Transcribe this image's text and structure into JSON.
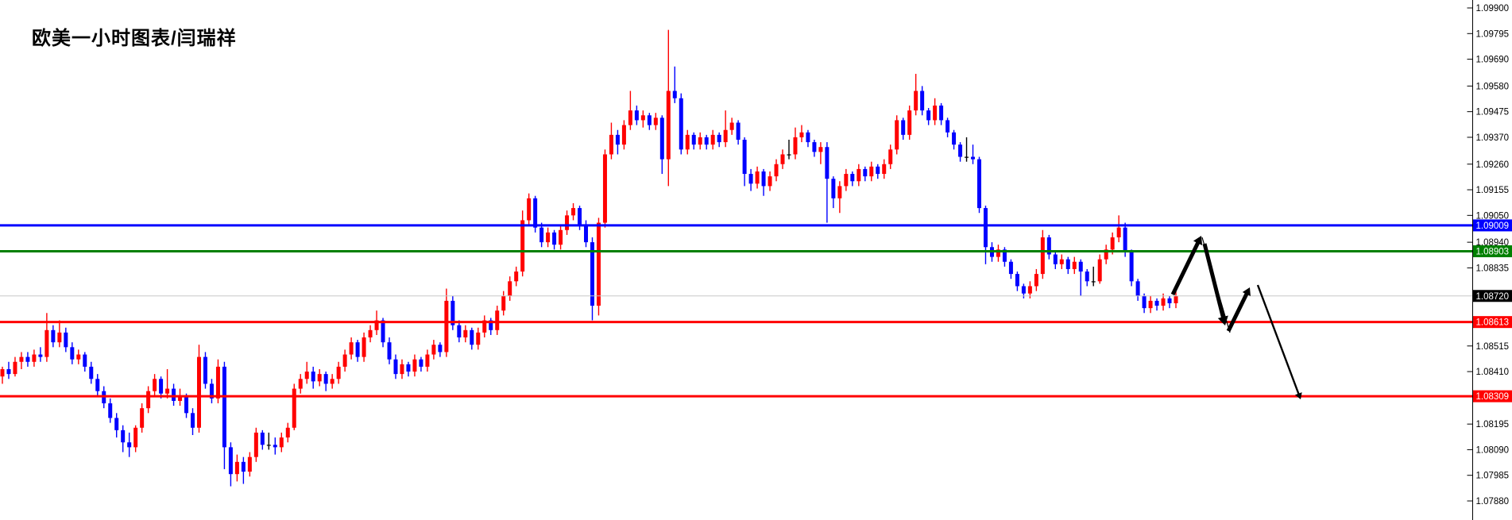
{
  "title": "欧美一小时图表/闫瑞祥",
  "colors": {
    "background": "#FFFFFF",
    "bull_candle": "#FF0000",
    "bear_candle": "#0000FF",
    "doji_candle": "#000000",
    "level_blue": "#0000FF",
    "level_green": "#008000",
    "level_red": "#FF0000",
    "current_price_line": "#C8C8C8",
    "current_price_badge": "#000000",
    "axis_line": "#000000",
    "axis_text": "#000000",
    "badge_text": "#FFFFFF",
    "arrow": "#000000"
  },
  "axis": {
    "side": "right",
    "tick_labels": [
      "1.09900",
      "1.09795",
      "1.09690",
      "1.09580",
      "1.09475",
      "1.09370",
      "1.09260",
      "1.09155",
      "1.09050",
      "1.08940",
      "1.08835",
      "1.08515",
      "1.08410",
      "1.08195",
      "1.08090",
      "1.07985",
      "1.07880"
    ],
    "tick_values": [
      1.099,
      1.09795,
      1.0969,
      1.0958,
      1.09475,
      1.0937,
      1.0926,
      1.09155,
      1.0905,
      1.0894,
      1.08835,
      1.08515,
      1.0841,
      1.08195,
      1.0809,
      1.07985,
      1.0788
    ]
  },
  "levels": [
    {
      "name": "resistance-blue",
      "price": 1.09009,
      "label": "1.09009",
      "color": "#0000FF",
      "stroke": 3,
      "badge": "#0000FF"
    },
    {
      "name": "resistance-green",
      "price": 1.08903,
      "label": "1.08903",
      "color": "#008000",
      "stroke": 3,
      "badge": "#008000"
    },
    {
      "name": "current-price",
      "price": 1.0872,
      "label": "1.08720",
      "color": "#C8C8C8",
      "stroke": 1,
      "badge": "#000000"
    },
    {
      "name": "support-red-1",
      "price": 1.08613,
      "label": "1.08613",
      "color": "#FF0000",
      "stroke": 3,
      "badge": "#FF0000"
    },
    {
      "name": "support-red-2",
      "price": 1.08309,
      "label": "1.08309",
      "color": "#FF0000",
      "stroke": 3,
      "badge": "#FF0000"
    }
  ],
  "arrows": [
    {
      "name": "projection-up-arrow-1",
      "from": [
        1476,
        371
      ],
      "to": [
        1512,
        297
      ],
      "stroke": 5,
      "head": 12
    },
    {
      "name": "projection-guide-line",
      "from": [
        1513,
        299
      ],
      "to": [
        1548,
        419
      ],
      "stroke": 1.2,
      "head": 0
    },
    {
      "name": "projection-down-arrow-1",
      "from": [
        1516,
        307
      ],
      "to": [
        1542,
        410
      ],
      "stroke": 5,
      "head": 13
    },
    {
      "name": "projection-up-arrow-2",
      "from": [
        1546,
        417
      ],
      "to": [
        1573,
        362
      ],
      "stroke": 5,
      "head": 11
    },
    {
      "name": "projection-down-arrow-2",
      "from": [
        1583,
        359
      ],
      "to": [
        1637,
        503
      ],
      "stroke": 2.4,
      "head": 9
    }
  ],
  "chart_data": {
    "type": "candlestick",
    "title": "欧美一小时图表/闫瑞祥",
    "timeframe_note": "1小时",
    "ylim": [
      1.0788,
      1.099
    ],
    "grid": false,
    "legend": "none",
    "ohlc": [
      [
        1.0839,
        1.0843,
        1.0836,
        1.0842
      ],
      [
        1.0842,
        1.0845,
        1.0838,
        1.084
      ],
      [
        1.084,
        1.0847,
        1.0839,
        1.0845
      ],
      [
        1.0845,
        1.0849,
        1.0842,
        1.0847
      ],
      [
        1.0847,
        1.0849,
        1.0843,
        1.0845
      ],
      [
        1.0845,
        1.085,
        1.0843,
        1.0848
      ],
      [
        1.0848,
        1.0851,
        1.0845,
        1.0847
      ],
      [
        1.0847,
        1.0865,
        1.0845,
        1.0858
      ],
      [
        1.0858,
        1.086,
        1.0851,
        1.0853
      ],
      [
        1.0853,
        1.0862,
        1.0851,
        1.0857
      ],
      [
        1.0857,
        1.0859,
        1.0849,
        1.0851
      ],
      [
        1.0851,
        1.0853,
        1.0844,
        1.0846
      ],
      [
        1.0846,
        1.085,
        1.0844,
        1.0848
      ],
      [
        1.0848,
        1.0849,
        1.0841,
        1.0843
      ],
      [
        1.0843,
        1.0845,
        1.0836,
        1.0838
      ],
      [
        1.0838,
        1.084,
        1.0831,
        1.0833
      ],
      [
        1.0833,
        1.0835,
        1.0826,
        1.0828
      ],
      [
        1.0828,
        1.083,
        1.082,
        1.0822
      ],
      [
        1.0822,
        1.0824,
        1.0814,
        1.0817
      ],
      [
        1.0817,
        1.0819,
        1.0808,
        1.0812
      ],
      [
        1.0812,
        1.0816,
        1.0806,
        1.081
      ],
      [
        1.081,
        1.0819,
        1.0808,
        1.0818
      ],
      [
        1.0818,
        1.0828,
        1.0816,
        1.0826
      ],
      [
        1.0826,
        1.0835,
        1.0824,
        1.0833
      ],
      [
        1.0833,
        1.084,
        1.0831,
        1.0838
      ],
      [
        1.0838,
        1.0839,
        1.083,
        1.0832
      ],
      [
        1.0832,
        1.0842,
        1.083,
        1.0834
      ],
      [
        1.0834,
        1.0836,
        1.0827,
        1.0829
      ],
      [
        1.0829,
        1.0834,
        1.0827,
        1.0831
      ],
      [
        1.0831,
        1.0832,
        1.0822,
        1.0824
      ],
      [
        1.0824,
        1.0826,
        1.0815,
        1.0818
      ],
      [
        1.0818,
        1.0852,
        1.0816,
        1.0847
      ],
      [
        1.0847,
        1.0849,
        1.0834,
        1.0836
      ],
      [
        1.0836,
        1.0838,
        1.0828,
        1.083
      ],
      [
        1.083,
        1.0846,
        1.0828,
        1.0843
      ],
      [
        1.0843,
        1.0845,
        1.0801,
        1.081
      ],
      [
        1.081,
        1.0812,
        1.0794,
        1.0799
      ],
      [
        1.0799,
        1.0807,
        1.0796,
        1.0804
      ],
      [
        1.0804,
        1.0806,
        1.0795,
        1.08
      ],
      [
        1.08,
        1.0808,
        1.0798,
        1.0806
      ],
      [
        1.0806,
        1.0818,
        1.0804,
        1.0816
      ],
      [
        1.0816,
        1.0817,
        1.0809,
        1.0811
      ],
      [
        1.0811,
        1.0816,
        1.0809,
        1.0811
      ],
      [
        1.0811,
        1.0814,
        1.0807,
        1.081
      ],
      [
        1.081,
        1.0816,
        1.0808,
        1.0814
      ],
      [
        1.0814,
        1.082,
        1.0812,
        1.0818
      ],
      [
        1.0818,
        1.0836,
        1.0817,
        1.0834
      ],
      [
        1.0834,
        1.084,
        1.0832,
        1.0838
      ],
      [
        1.0838,
        1.0845,
        1.0836,
        1.0841
      ],
      [
        1.0841,
        1.0843,
        1.0834,
        1.0837
      ],
      [
        1.0837,
        1.0842,
        1.0835,
        1.084
      ],
      [
        1.084,
        1.0841,
        1.0833,
        1.0836
      ],
      [
        1.0836,
        1.084,
        1.0834,
        1.0838
      ],
      [
        1.0838,
        1.0845,
        1.0836,
        1.0843
      ],
      [
        1.0843,
        1.085,
        1.0841,
        1.0848
      ],
      [
        1.0848,
        1.0855,
        1.0846,
        1.0853
      ],
      [
        1.0853,
        1.0854,
        1.0845,
        1.0847
      ],
      [
        1.0847,
        1.0857,
        1.0845,
        1.0855
      ],
      [
        1.0855,
        1.086,
        1.0853,
        1.0858
      ],
      [
        1.0858,
        1.0866,
        1.0856,
        1.0862
      ],
      [
        1.0862,
        1.0863,
        1.0851,
        1.0853
      ],
      [
        1.0853,
        1.0855,
        1.0844,
        1.0846
      ],
      [
        1.0846,
        1.0848,
        1.0838,
        1.084
      ],
      [
        1.084,
        1.0846,
        1.0838,
        1.0844
      ],
      [
        1.0844,
        1.0845,
        1.0839,
        1.0841
      ],
      [
        1.0841,
        1.0848,
        1.0839,
        1.0846
      ],
      [
        1.0846,
        1.0847,
        1.0841,
        1.0843
      ],
      [
        1.0843,
        1.085,
        1.0841,
        1.0848
      ],
      [
        1.0848,
        1.0854,
        1.0846,
        1.0852
      ],
      [
        1.0852,
        1.0853,
        1.0847,
        1.0849
      ],
      [
        1.0849,
        1.0875,
        1.0847,
        1.087
      ],
      [
        1.087,
        1.0872,
        1.0858,
        1.086
      ],
      [
        1.086,
        1.0862,
        1.0853,
        1.0855
      ],
      [
        1.0855,
        1.086,
        1.0853,
        1.0858
      ],
      [
        1.0858,
        1.0859,
        1.085,
        1.0852
      ],
      [
        1.0852,
        1.0859,
        1.085,
        1.0857
      ],
      [
        1.0857,
        1.0864,
        1.0855,
        1.0862
      ],
      [
        1.0862,
        1.0863,
        1.0856,
        1.0858
      ],
      [
        1.0858,
        1.0868,
        1.0856,
        1.0866
      ],
      [
        1.0866,
        1.0874,
        1.0864,
        1.0872
      ],
      [
        1.0872,
        1.088,
        1.087,
        1.0878
      ],
      [
        1.0878,
        1.0884,
        1.0876,
        1.0882
      ],
      [
        1.0882,
        1.0907,
        1.088,
        1.0903
      ],
      [
        1.0903,
        1.0914,
        1.0901,
        1.0912
      ],
      [
        1.0912,
        1.0913,
        1.0898,
        1.09
      ],
      [
        1.09,
        1.0902,
        1.0892,
        1.0894
      ],
      [
        1.0894,
        1.09,
        1.0892,
        1.0898
      ],
      [
        1.0898,
        1.0899,
        1.0891,
        1.0893
      ],
      [
        1.0893,
        1.0901,
        1.0891,
        1.0899
      ],
      [
        1.0899,
        1.0907,
        1.0897,
        1.0905
      ],
      [
        1.0905,
        1.091,
        1.0903,
        1.0908
      ],
      [
        1.0908,
        1.0909,
        1.0899,
        1.0901
      ],
      [
        1.0901,
        1.0903,
        1.0892,
        1.0894
      ],
      [
        1.0894,
        1.0896,
        1.0862,
        1.0868
      ],
      [
        1.0868,
        1.0904,
        1.0864,
        1.0902
      ],
      [
        1.0902,
        1.0932,
        1.09,
        1.093
      ],
      [
        1.093,
        1.0943,
        1.0928,
        1.0938
      ],
      [
        1.0938,
        1.094,
        1.093,
        1.0934
      ],
      [
        1.0934,
        1.0944,
        1.0932,
        1.0942
      ],
      [
        1.0942,
        1.0956,
        1.094,
        1.0948
      ],
      [
        1.0948,
        1.095,
        1.0942,
        1.0944
      ],
      [
        1.0944,
        1.0948,
        1.0941,
        1.0946
      ],
      [
        1.0946,
        1.0947,
        1.094,
        1.0942
      ],
      [
        1.0942,
        1.0947,
        1.094,
        1.0945
      ],
      [
        1.0945,
        1.0946,
        1.0922,
        1.0928
      ],
      [
        1.0928,
        1.0981,
        1.0917,
        1.0956
      ],
      [
        1.0956,
        1.0966,
        1.0951,
        1.0953
      ],
      [
        1.0953,
        1.0955,
        1.093,
        1.0932
      ],
      [
        1.0932,
        1.094,
        1.093,
        1.0938
      ],
      [
        1.0938,
        1.0939,
        1.0932,
        1.0934
      ],
      [
        1.0934,
        1.0939,
        1.0932,
        1.0937
      ],
      [
        1.0937,
        1.0938,
        1.0932,
        1.0934
      ],
      [
        1.0934,
        1.094,
        1.0932,
        1.0938
      ],
      [
        1.0938,
        1.0939,
        1.0933,
        1.0935
      ],
      [
        1.0935,
        1.0948,
        1.0933,
        1.094
      ],
      [
        1.094,
        1.0945,
        1.0938,
        1.0943
      ],
      [
        1.0943,
        1.0944,
        1.0934,
        1.0936
      ],
      [
        1.0936,
        1.0937,
        1.0917,
        1.0922
      ],
      [
        1.0922,
        1.0924,
        1.0915,
        1.0918
      ],
      [
        1.0918,
        1.0925,
        1.0916,
        1.0923
      ],
      [
        1.0923,
        1.0924,
        1.0913,
        1.0917
      ],
      [
        1.0917,
        1.0923,
        1.0915,
        1.0921
      ],
      [
        1.0921,
        1.0928,
        1.0919,
        1.0926
      ],
      [
        1.0926,
        1.0932,
        1.0924,
        1.093
      ],
      [
        1.093,
        1.0936,
        1.0928,
        1.093
      ],
      [
        1.093,
        1.0941,
        1.0928,
        1.0937
      ],
      [
        1.0937,
        1.0942,
        1.0935,
        1.0939
      ],
      [
        1.0939,
        1.094,
        1.0933,
        1.0935
      ],
      [
        1.0935,
        1.0936,
        1.0929,
        1.0931
      ],
      [
        1.0931,
        1.0935,
        1.0926,
        1.0933
      ],
      [
        1.0933,
        1.0935,
        1.0902,
        1.092
      ],
      [
        1.092,
        1.0921,
        1.0908,
        1.0912
      ],
      [
        1.0912,
        1.0919,
        1.0906,
        1.0917
      ],
      [
        1.0917,
        1.0924,
        1.0915,
        1.0922
      ],
      [
        1.0922,
        1.0923,
        1.0917,
        1.0919
      ],
      [
        1.0919,
        1.0926,
        1.0917,
        1.0924
      ],
      [
        1.0924,
        1.0925,
        1.0919,
        1.0921
      ],
      [
        1.0921,
        1.0927,
        1.0919,
        1.0925
      ],
      [
        1.0925,
        1.0926,
        1.092,
        1.0922
      ],
      [
        1.0922,
        1.0928,
        1.092,
        1.0926
      ],
      [
        1.0926,
        1.0934,
        1.0924,
        1.0932
      ],
      [
        1.0932,
        1.0946,
        1.093,
        1.0944
      ],
      [
        1.0944,
        1.0945,
        1.0936,
        1.0938
      ],
      [
        1.0938,
        1.095,
        1.0936,
        1.0948
      ],
      [
        1.0948,
        1.0963,
        1.0946,
        1.0956
      ],
      [
        1.0956,
        1.0958,
        1.0946,
        1.0948
      ],
      [
        1.0948,
        1.0949,
        1.0942,
        1.0944
      ],
      [
        1.0944,
        1.0953,
        1.0942,
        1.095
      ],
      [
        1.095,
        1.0951,
        1.0942,
        1.0944
      ],
      [
        1.0944,
        1.0945,
        1.0937,
        1.0939
      ],
      [
        1.0939,
        1.094,
        1.0932,
        1.0934
      ],
      [
        1.0934,
        1.0935,
        1.0927,
        1.0929
      ],
      [
        1.0929,
        1.0937,
        1.0927,
        1.0929
      ],
      [
        1.0929,
        1.0934,
        1.0926,
        1.0928
      ],
      [
        1.0928,
        1.0929,
        1.0906,
        1.0908
      ],
      [
        1.0908,
        1.0909,
        1.0885,
        1.0892
      ],
      [
        1.0892,
        1.0894,
        1.0886,
        1.0888
      ],
      [
        1.0888,
        1.0893,
        1.0886,
        1.0891
      ],
      [
        1.0891,
        1.0892,
        1.0884,
        1.0886
      ],
      [
        1.0886,
        1.0887,
        1.0879,
        1.0881
      ],
      [
        1.0881,
        1.0882,
        1.0874,
        1.0876
      ],
      [
        1.0876,
        1.0877,
        1.0871,
        1.0873
      ],
      [
        1.0873,
        1.0878,
        1.0871,
        1.0876
      ],
      [
        1.0876,
        1.0883,
        1.0874,
        1.0881
      ],
      [
        1.0881,
        1.0899,
        1.0879,
        1.0896
      ],
      [
        1.0896,
        1.0897,
        1.0887,
        1.0889
      ],
      [
        1.0889,
        1.089,
        1.0883,
        1.0885
      ],
      [
        1.0885,
        1.0889,
        1.0883,
        1.0887
      ],
      [
        1.0887,
        1.0888,
        1.0881,
        1.0883
      ],
      [
        1.0883,
        1.0888,
        1.0881,
        1.0886
      ],
      [
        1.0886,
        1.0887,
        1.0872,
        1.0882
      ],
      [
        1.0882,
        1.0883,
        1.0876,
        1.0878
      ],
      [
        1.0878,
        1.0884,
        1.0876,
        1.0878
      ],
      [
        1.0878,
        1.0889,
        1.0877,
        1.0887
      ],
      [
        1.0887,
        1.0893,
        1.0885,
        1.0891
      ],
      [
        1.0891,
        1.0898,
        1.0889,
        1.0896
      ],
      [
        1.0896,
        1.0905,
        1.0894,
        1.09
      ],
      [
        1.09,
        1.0902,
        1.0888,
        1.089
      ],
      [
        1.089,
        1.0891,
        1.0876,
        1.0878
      ],
      [
        1.0878,
        1.0879,
        1.087,
        1.0872
      ],
      [
        1.0872,
        1.0873,
        1.0865,
        1.0867
      ],
      [
        1.0867,
        1.0872,
        1.0865,
        1.087
      ],
      [
        1.087,
        1.0871,
        1.0866,
        1.0868
      ],
      [
        1.0868,
        1.0873,
        1.0866,
        1.0871
      ],
      [
        1.0871,
        1.0872,
        1.0867,
        1.0869
      ],
      [
        1.0869,
        1.0874,
        1.0867,
        1.0872
      ]
    ]
  }
}
